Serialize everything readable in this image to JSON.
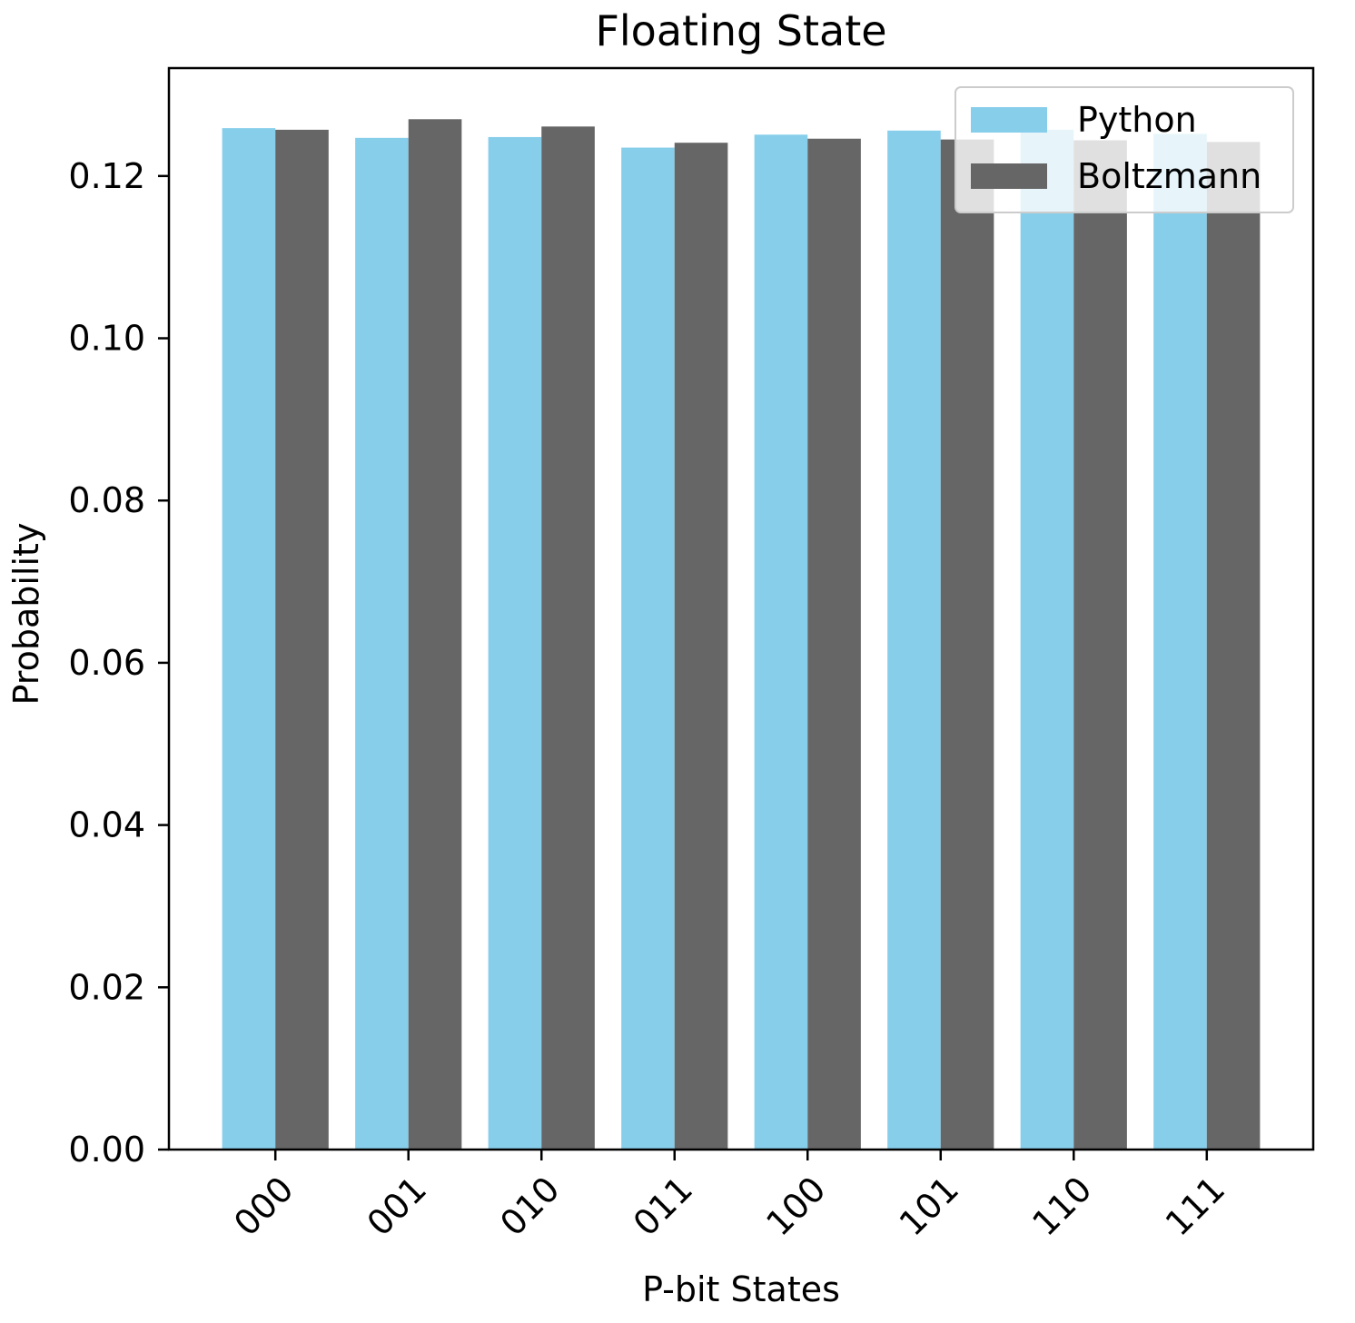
{
  "chart_data": {
    "type": "bar",
    "title": "Floating State",
    "xlabel": "P-bit States",
    "ylabel": "Probability",
    "categories": [
      "000",
      "001",
      "010",
      "011",
      "100",
      "101",
      "110",
      "111"
    ],
    "series": [
      {
        "name": "Python",
        "color": "#87CEEB",
        "values": [
          0.1259,
          0.1247,
          0.1248,
          0.1235,
          0.1251,
          0.1256,
          0.1257,
          0.1252
        ]
      },
      {
        "name": "Boltzmann",
        "color": "#666666",
        "values": [
          0.1257,
          0.127,
          0.1261,
          0.1241,
          0.1246,
          0.1245,
          0.1244,
          0.1242
        ]
      }
    ],
    "ylim": [
      0,
      0.1333
    ],
    "yticks": [
      0.0,
      0.02,
      0.04,
      0.06,
      0.08,
      0.1,
      0.12
    ],
    "ytick_labels": [
      "0.00",
      "0.02",
      "0.04",
      "0.06",
      "0.08",
      "0.10",
      "0.12"
    ],
    "grid": false,
    "legend_position": "top-right"
  }
}
